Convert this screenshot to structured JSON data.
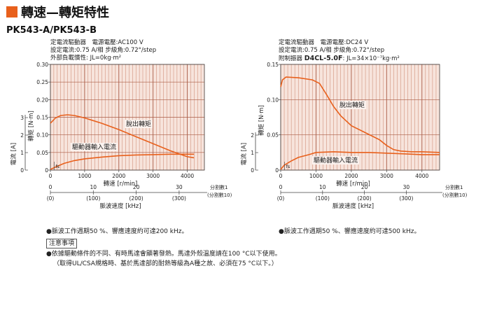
{
  "header": {
    "title": "轉速—轉矩特性",
    "model": "PK543-A/PK543-B"
  },
  "colors": {
    "accent": "#e8601c",
    "plot_bg": "#f7e4dc",
    "grid": "#c9826a",
    "curve": "#e8601c"
  },
  "left": {
    "cond_line1": "定電流驅動器　電源電壓:AC100 V",
    "cond_line2": "設定電流:0.75 A/相 步級角:0.72°/step",
    "cond_line3": "外部負載慣性: JL=0kg·m²",
    "note": "●脈波工作週期50 %、響應速度約可達200 kHz。"
  },
  "right": {
    "cond_line1": "定電流驅動器　電源電壓:DC24 V",
    "cond_line2": "設定電流:0.75 A/相 步級角:0.72°/step",
    "cond_line3_prefix": "附制振器 ",
    "cond_line3_bold": "D4CL-5.0F",
    "cond_line3_suffix": ": JL=34×10⁻⁷kg·m²",
    "note": "●脈波工作週期50 %、響應速度約可達500 kHz。"
  },
  "notes": {
    "title": "注意事項",
    "line1": "●依據驅動條件的不同、有時馬達會顯著發熱。馬達外殼溫度請在100 °C以下使用。",
    "line2": "（取得UL/CSA規格時、基於馬達部的耐熱等級為A種之故、必須在75 °C以下。）"
  },
  "chart_data": [
    {
      "type": "line",
      "xlabel": "轉速 [r/min]",
      "ylabel": "轉矩 [N·m]",
      "ylabel2": "電流 [A]",
      "xlabel2": "脈波速度 [kHz]",
      "xlim": [
        0,
        4500
      ],
      "ylim": [
        0,
        0.3
      ],
      "x_ticks": [
        "0",
        "1000",
        "2000",
        "3000",
        "4000"
      ],
      "y_ticks": [
        "0",
        "0.05",
        "0.10",
        "0.15",
        "0.20",
        "0.25",
        "0.30"
      ],
      "y2_ticks": [
        "0",
        "1",
        "2",
        "3"
      ],
      "x2_ticks_full": [
        "0",
        "10",
        "20",
        "30"
      ],
      "x2_ticks_div": [
        "(0)",
        "(100)",
        "(200)",
        "(300)"
      ],
      "x2_label_full": "分割數1",
      "x2_label_div": "(分割數10)",
      "fs_label": "fs",
      "series": [
        {
          "name": "脫出轉矩",
          "x": [
            0,
            150,
            300,
            500,
            700,
            1000,
            1500,
            2000,
            2500,
            3000,
            3500,
            4000,
            4200
          ],
          "y": [
            0.133,
            0.148,
            0.155,
            0.157,
            0.155,
            0.148,
            0.133,
            0.115,
            0.095,
            0.075,
            0.055,
            0.038,
            0.035
          ]
        },
        {
          "name": "驅動器輸入電流",
          "x": [
            0,
            200,
            400,
            700,
            1000,
            1500,
            2000,
            2500,
            3000,
            3500,
            4000,
            4200
          ],
          "y": [
            0.002,
            0.011,
            0.019,
            0.027,
            0.032,
            0.037,
            0.041,
            0.043,
            0.044,
            0.045,
            0.045,
            0.045
          ]
        }
      ]
    },
    {
      "type": "line",
      "xlabel": "轉速 [r/min]",
      "ylabel": "轉矩 [N·m]",
      "ylabel2": "電流 [A]",
      "xlabel2": "脈波速度 [kHz]",
      "xlim": [
        0,
        4500
      ],
      "ylim": [
        0,
        0.15
      ],
      "x_ticks": [
        "0",
        "1000",
        "2000",
        "3000",
        "4000"
      ],
      "y_ticks": [
        "0",
        "0.05",
        "0.10",
        "0.15"
      ],
      "y2_ticks": [
        "0",
        "1",
        "2"
      ],
      "x2_ticks_full": [
        "0",
        "10",
        "20",
        "30"
      ],
      "x2_ticks_div": [
        "(0)",
        "(100)",
        "(200)",
        "(300)"
      ],
      "x2_label_full": "分割數1",
      "x2_label_div": "(分割數10)",
      "fs_label": "fs",
      "series": [
        {
          "name": "脫出轉矩",
          "x": [
            0,
            50,
            150,
            500,
            900,
            1100,
            1300,
            1500,
            1700,
            2000,
            2400,
            2800,
            3000,
            3200,
            3400,
            3700,
            4000,
            4500
          ],
          "y": [
            0.118,
            0.128,
            0.132,
            0.131,
            0.128,
            0.123,
            0.107,
            0.09,
            0.077,
            0.063,
            0.053,
            0.043,
            0.035,
            0.029,
            0.027,
            0.026,
            0.026,
            0.025
          ]
        },
        {
          "name": "驅動器輸入電流",
          "x": [
            0,
            100,
            300,
            500,
            800,
            1000,
            1500,
            2000,
            2500,
            3000,
            3500,
            4000,
            4500
          ],
          "y": [
            0.001,
            0.007,
            0.013,
            0.018,
            0.022,
            0.025,
            0.026,
            0.025,
            0.025,
            0.024,
            0.023,
            0.022,
            0.022
          ]
        }
      ]
    }
  ]
}
